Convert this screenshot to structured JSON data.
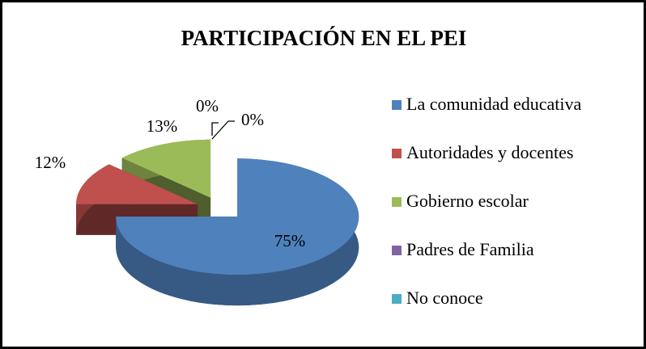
{
  "chart_data": {
    "type": "pie",
    "title": "PARTICIPACIÓN EN EL PEI",
    "categories": [
      "La comunidad educativa",
      "Autoridades y docentes",
      "Gobierno escolar",
      "Padres de Familia",
      "No conoce"
    ],
    "values": [
      75,
      12,
      13,
      0,
      0
    ],
    "value_labels": [
      "75%",
      "12%",
      "13%",
      "0%",
      "0%"
    ],
    "colors": [
      "#4f81bd",
      "#c0504d",
      "#9bbb59",
      "#8064a2",
      "#4bacc6"
    ],
    "legend": "right"
  }
}
